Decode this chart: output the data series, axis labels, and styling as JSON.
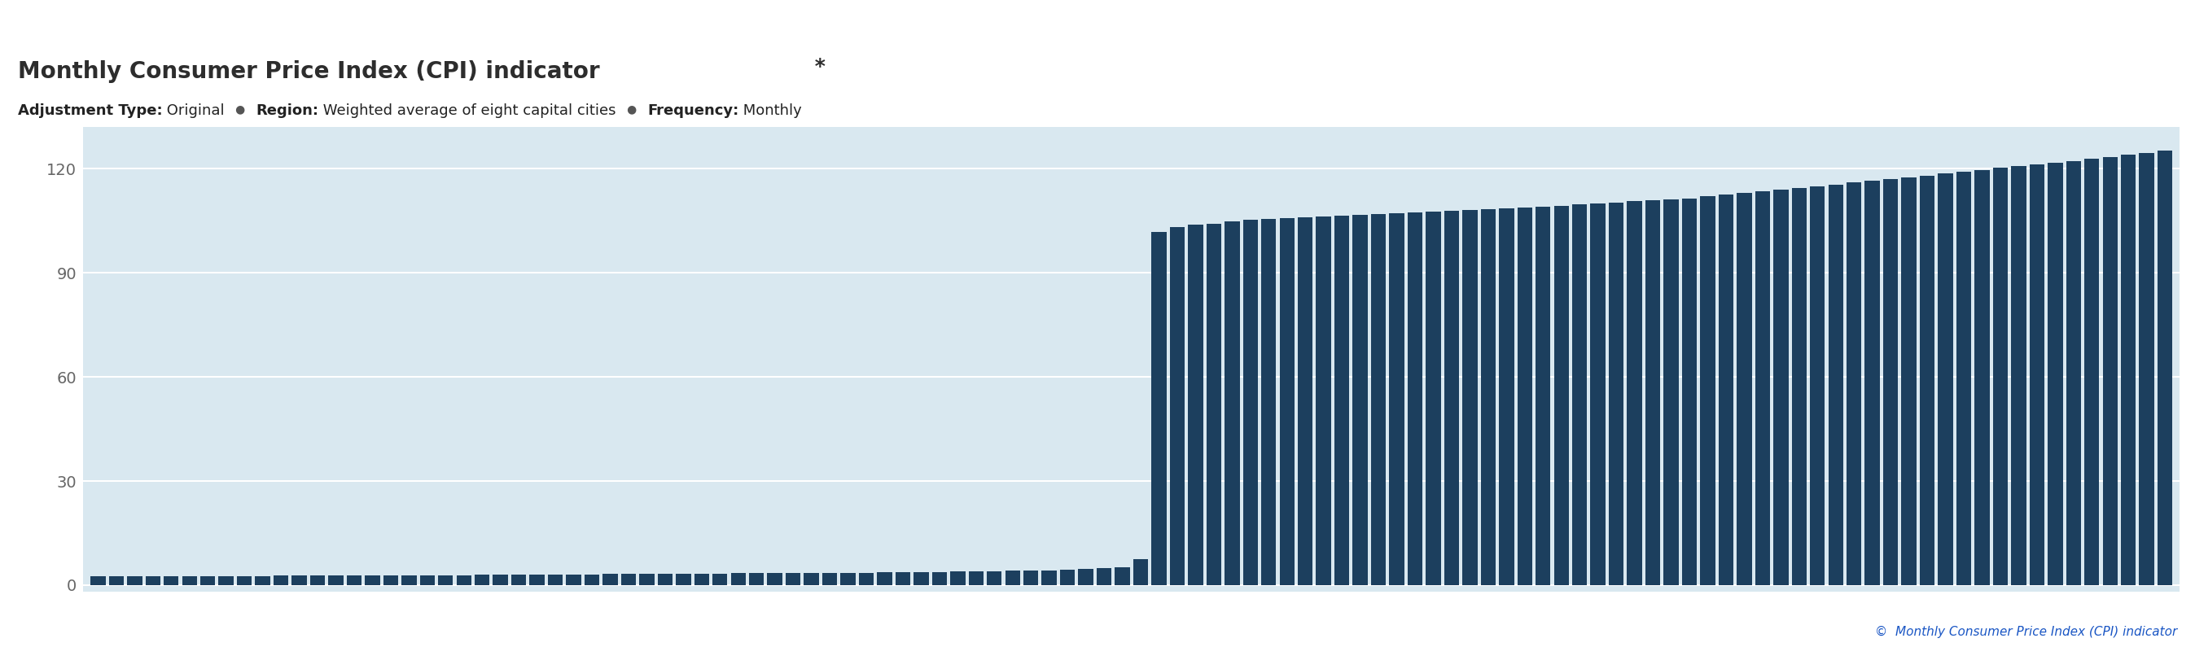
{
  "title": "Monthly Consumer Price Index (CPI) indicator",
  "title_star": " *",
  "bar_color": "#1c3f5e",
  "bg_color": "#d9e8f0",
  "fig_bg_color": "#ffffff",
  "yticks": [
    0,
    30,
    60,
    90,
    120
  ],
  "ylim": [
    -2,
    132
  ],
  "grid_color": "#ffffff",
  "copyright_text": "©  Monthly Consumer Price Index (CPI) indicator",
  "copyright_color": "#1a56c4",
  "top_bar_color": "#29a9c5",
  "bottom_bar_color": "#1a6faf",
  "subtitle_bold_color": "#222222",
  "subtitle_normal_color": "#222222",
  "subtitle_dot_color": "#333333",
  "values": [
    2.5,
    2.5,
    2.6,
    2.5,
    2.5,
    2.5,
    2.6,
    2.6,
    2.6,
    2.6,
    2.7,
    2.7,
    2.7,
    2.7,
    2.8,
    2.8,
    2.8,
    2.8,
    2.9,
    2.9,
    2.9,
    3.0,
    3.0,
    3.0,
    3.0,
    3.1,
    3.1,
    3.1,
    3.2,
    3.2,
    3.2,
    3.2,
    3.3,
    3.3,
    3.3,
    3.4,
    3.4,
    3.4,
    3.5,
    3.5,
    3.5,
    3.6,
    3.6,
    3.7,
    3.7,
    3.8,
    3.8,
    3.9,
    4.0,
    4.0,
    4.1,
    4.2,
    4.3,
    4.4,
    4.6,
    4.8,
    5.2,
    7.5,
    101.8,
    103.2,
    104.0,
    104.2,
    104.8,
    105.3,
    105.6,
    105.8,
    106.0,
    106.2,
    106.5,
    106.7,
    106.9,
    107.2,
    107.4,
    107.6,
    107.8,
    108.1,
    108.3,
    108.6,
    108.8,
    109.1,
    109.4,
    109.7,
    110.0,
    110.3,
    110.6,
    110.9,
    111.2,
    111.5,
    112.0,
    112.5,
    113.0,
    113.5,
    114.0,
    114.5,
    115.0,
    115.5,
    116.0,
    116.5,
    117.0,
    117.5,
    118.0,
    118.6,
    119.2,
    119.7,
    120.2,
    120.7,
    121.3,
    121.8,
    122.3,
    122.8,
    123.4,
    124.0,
    124.6,
    125.2
  ]
}
